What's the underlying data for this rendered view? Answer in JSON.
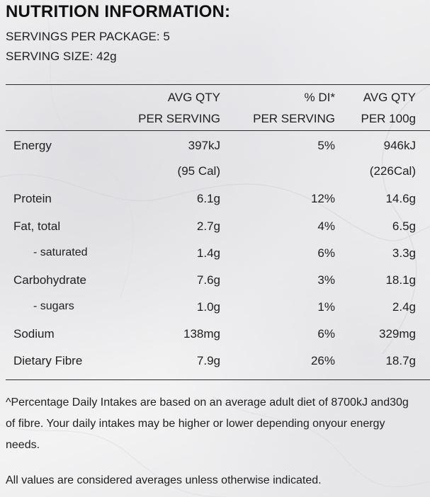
{
  "panel": {
    "title": "NUTRITION INFORMATION:",
    "servings_per_package": "SERVINGS PER PACKAGE: 5",
    "serving_size": "SERVING SIZE: 42g"
  },
  "table": {
    "headers": [
      {
        "line1": "AVG QTY",
        "line2": "PER SERVING"
      },
      {
        "line1": "% DI*",
        "line2": "PER SERVING"
      },
      {
        "line1": "AVG QTY",
        "line2": "PER 100g"
      }
    ],
    "rows": [
      {
        "label": "Energy",
        "per_serving": "397kJ",
        "di": "5%",
        "per_100g": "946kJ"
      },
      {
        "label": "",
        "per_serving": "(95 Cal)",
        "di": "",
        "per_100g": "(226Cal)"
      },
      {
        "label": "Protein",
        "per_serving": "6.1g",
        "di": "12%",
        "per_100g": "14.6g"
      },
      {
        "label": "Fat, total",
        "per_serving": "2.7g",
        "di": "4%",
        "per_100g": "6.5g"
      },
      {
        "label": "- saturated",
        "per_serving": "1.4g",
        "di": "6%",
        "per_100g": "3.3g"
      },
      {
        "label": "Carbohydrate",
        "per_serving": "7.6g",
        "di": "3%",
        "per_100g": "18.1g"
      },
      {
        "label": "- sugars",
        "per_serving": "1.0g",
        "di": "1%",
        "per_100g": "2.4g"
      },
      {
        "label": "Sodium",
        "per_serving": "138mg",
        "di": "6%",
        "per_100g": "329mg"
      },
      {
        "label": "Dietary Fibre",
        "per_serving": "7.9g",
        "di": "26%",
        "per_100g": "18.7g"
      }
    ]
  },
  "footnote": {
    "lines": [
      "^Percentage Daily Intakes are based on an average adult diet of 8700kJ and30g",
      "of fibre. Your daily intakes may be higher or lower depending onyour energy",
      "needs."
    ],
    "averages": "All values are considered averages unless otherwise indicated."
  }
}
